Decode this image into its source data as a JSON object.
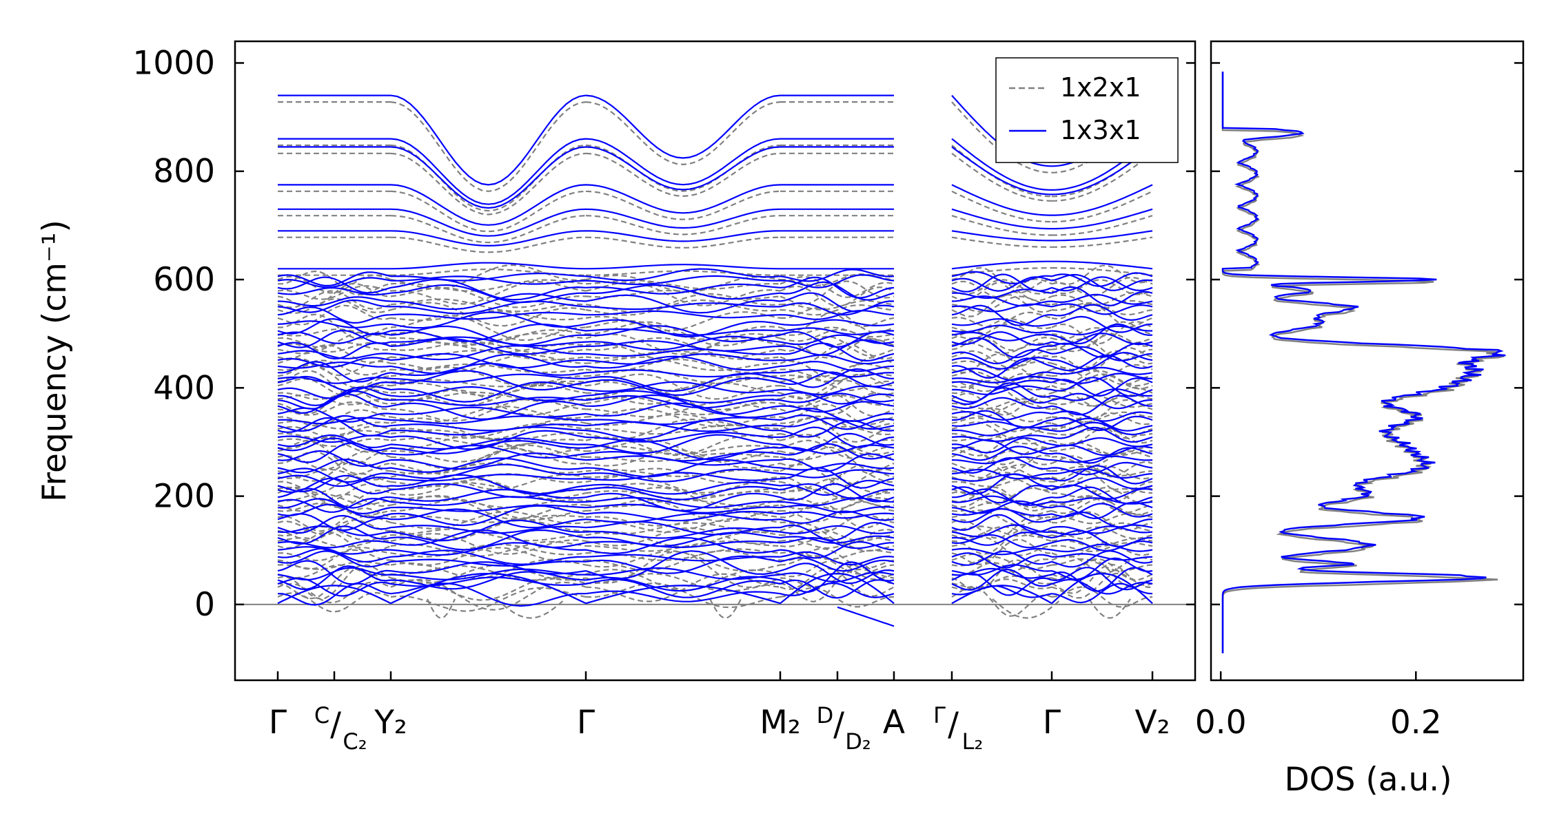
{
  "chart_data": [
    {
      "type": "line",
      "ylabel": "Frequency (cm⁻¹)",
      "ylim": [
        -140,
        1040
      ],
      "yticks": [
        0,
        200,
        400,
        600,
        800,
        1000
      ],
      "ytick_labels": [
        "0",
        "200",
        "400",
        "600",
        "800",
        "1000"
      ],
      "kpath_labels": [
        {
          "main": "Γ",
          "sup": "",
          "sub": ""
        },
        {
          "main": "/",
          "sup": "C",
          "sub": "C₂"
        },
        {
          "main": "Y₂",
          "sup": "",
          "sub": ""
        },
        {
          "main": "Γ",
          "sup": "",
          "sub": ""
        },
        {
          "main": "M₂",
          "sup": "",
          "sub": ""
        },
        {
          "main": "/",
          "sup": "D",
          "sub": "D₂"
        },
        {
          "main": "A",
          "sup": "",
          "sub": ""
        },
        {
          "main": "/",
          "sup": "Γ",
          "sub": "L₂"
        },
        {
          "main": "Γ",
          "sup": "",
          "sub": ""
        },
        {
          "main": "V₂",
          "sup": "",
          "sub": ""
        }
      ],
      "legend": {
        "placement": "upper-right",
        "entries": [
          {
            "label": "1x2x1",
            "color": "#808080",
            "style": "dashed"
          },
          {
            "label": "1x3x1",
            "color": "#0000ff",
            "style": "solid"
          }
        ]
      },
      "series": [
        {
          "name": "1x2x1",
          "color": "#808080",
          "style": "dashed"
        },
        {
          "name": "1x3x1",
          "color": "#0000ff",
          "style": "solid"
        }
      ],
      "zero_line": true,
      "grid": false
    },
    {
      "type": "line",
      "xlabel": "DOS (a.u.)",
      "xlim": [
        -0.01,
        0.31
      ],
      "xticks": [
        0.0,
        0.2
      ],
      "xtick_labels": [
        "0.0",
        "0.2"
      ],
      "ylim": [
        -140,
        1040
      ],
      "series": [
        {
          "name": "1x2x1",
          "color": "#808080",
          "style": "solid"
        },
        {
          "name": "1x3x1",
          "color": "#0000ff",
          "style": "solid"
        }
      ],
      "grid": false
    }
  ]
}
